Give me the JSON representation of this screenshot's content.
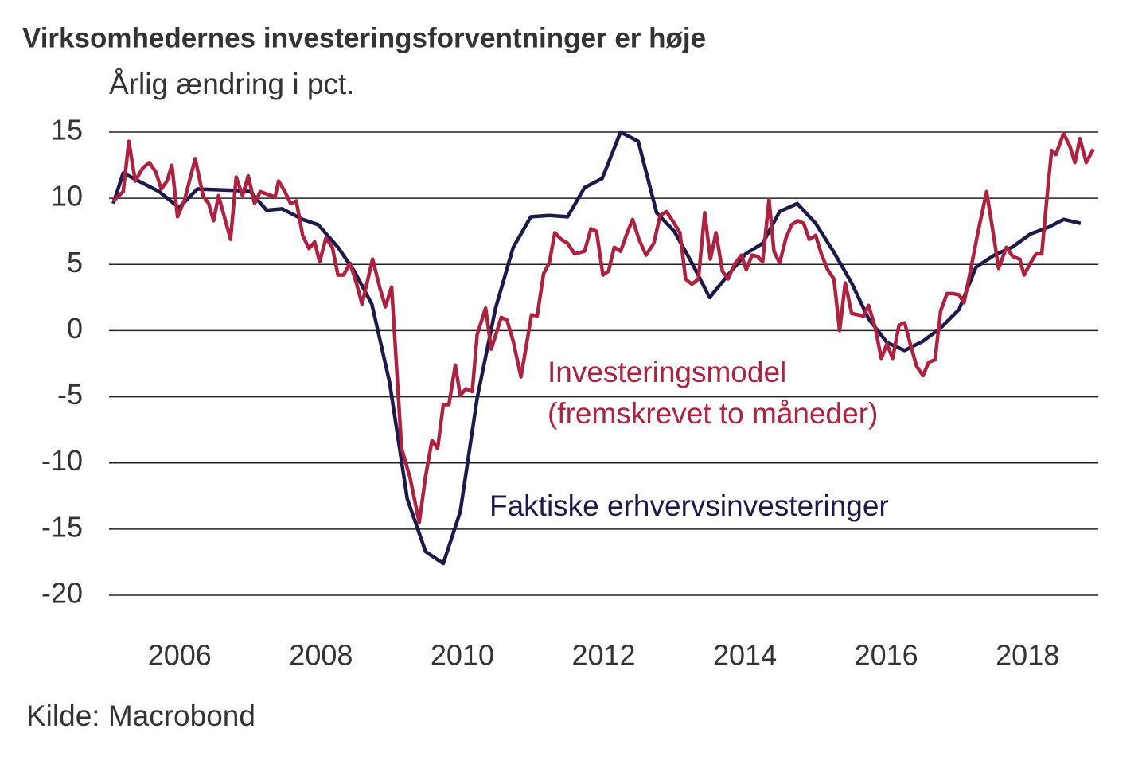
{
  "chart_data": {
    "type": "line",
    "title": "Virksomhedernes investeringsforventninger er høje",
    "subtitle": "Årlig ændring i pct.",
    "source": "Kilde: Macrobond",
    "annotations": [
      "Investeringsmodel",
      "(fremskrevet to måneder)",
      "Faktiske erhvervsinvesteringer"
    ],
    "xlim": [
      2005,
      2019
    ],
    "xticks": [
      2006,
      2008,
      2010,
      2012,
      2014,
      2016,
      2018
    ],
    "ylim": [
      -20,
      15
    ],
    "yticks": [
      -20,
      -15,
      -10,
      -5,
      0,
      5,
      10,
      15
    ],
    "grid": true,
    "series": [
      {
        "color": "#1c1a4a",
        "x": [
          2005.06,
          2005.2,
          2005.71,
          2005.99,
          2006.25,
          2006.78,
          2007.0,
          2007.23,
          2007.45,
          2007.74,
          2007.96,
          2008.24,
          2008.47,
          2008.72,
          2008.97,
          2009.22,
          2009.48,
          2009.73,
          2009.97,
          2010.21,
          2010.47,
          2010.72,
          2010.97,
          2011.23,
          2011.49,
          2011.73,
          2011.98,
          2012.24,
          2012.49,
          2012.75,
          2013.0,
          2013.25,
          2013.5,
          2013.76,
          2014.01,
          2014.25,
          2014.49,
          2014.74,
          2015.0,
          2015.25,
          2015.51,
          2015.75,
          2016.01,
          2016.26,
          2016.52,
          2016.77,
          2017.03,
          2017.27,
          2017.53,
          2017.78,
          2018.04,
          2018.29,
          2018.51,
          2018.75
        ],
        "values": [
          9.6,
          11.9,
          10.5,
          9.3,
          10.7,
          10.6,
          10.5,
          9.1,
          9.2,
          8.4,
          8.0,
          6.3,
          4.5,
          2.0,
          -3.9,
          -12.7,
          -16.7,
          -17.6,
          -13.7,
          -5.1,
          1.7,
          6.3,
          8.6,
          8.7,
          8.6,
          10.8,
          11.5,
          15.0,
          14.3,
          8.9,
          7.5,
          5.1,
          2.5,
          4.2,
          5.8,
          6.6,
          9.0,
          9.6,
          8.1,
          6.0,
          3.6,
          0.9,
          -0.9,
          -1.5,
          -0.8,
          0.2,
          1.6,
          4.8,
          5.7,
          6.3,
          7.3,
          7.8,
          8.4,
          8.1
        ]
      },
      {
        "color": "#b0203f",
        "x": [
          2005.06,
          2005.2,
          2005.28,
          2005.37,
          2005.48,
          2005.57,
          2005.66,
          2005.74,
          2005.82,
          2005.89,
          2005.97,
          2006.07,
          2006.22,
          2006.33,
          2006.41,
          2006.48,
          2006.55,
          2006.72,
          2006.8,
          2006.89,
          2006.97,
          2007.06,
          2007.14,
          2007.35,
          2007.4,
          2007.49,
          2007.57,
          2007.65,
          2007.74,
          2007.83,
          2007.91,
          2007.98,
          2008.07,
          2008.16,
          2008.24,
          2008.32,
          2008.41,
          2008.5,
          2008.58,
          2008.73,
          2008.83,
          2008.91,
          2009.0,
          2009.14,
          2009.26,
          2009.39,
          2009.48,
          2009.57,
          2009.65,
          2009.73,
          2009.81,
          2009.9,
          2009.97,
          2010.05,
          2010.14,
          2010.21,
          2010.33,
          2010.41,
          2010.55,
          2010.63,
          2010.72,
          2010.83,
          2010.98,
          2011.06,
          2011.15,
          2011.23,
          2011.31,
          2011.4,
          2011.49,
          2011.59,
          2011.73,
          2011.82,
          2011.9,
          2011.99,
          2012.07,
          2012.15,
          2012.24,
          2012.32,
          2012.41,
          2012.5,
          2012.6,
          2012.71,
          2012.8,
          2012.89,
          2013.0,
          2013.08,
          2013.16,
          2013.25,
          2013.34,
          2013.43,
          2013.51,
          2013.59,
          2013.68,
          2013.76,
          2013.85,
          2013.95,
          2014.02,
          2014.1,
          2014.18,
          2014.25,
          2014.34,
          2014.41,
          2014.49,
          2014.58,
          2014.66,
          2014.75,
          2014.83,
          2014.91,
          2015.0,
          2015.08,
          2015.17,
          2015.26,
          2015.34,
          2015.42,
          2015.51,
          2015.6,
          2015.68,
          2015.75,
          2015.84,
          2015.93,
          2016.01,
          2016.09,
          2016.18,
          2016.26,
          2016.35,
          2016.43,
          2016.52,
          2016.6,
          2016.69,
          2016.77,
          2016.86,
          2016.94,
          2017.03,
          2017.1,
          2017.19,
          2017.3,
          2017.42,
          2017.51,
          2017.59,
          2017.7,
          2017.79,
          2017.89,
          2017.95,
          2018.04,
          2018.12,
          2018.2,
          2018.29,
          2018.34,
          2018.4,
          2018.51,
          2018.6,
          2018.67,
          2018.74,
          2018.83,
          2018.93
        ],
        "values": [
          9.8,
          10.5,
          14.3,
          11.3,
          12.3,
          12.7,
          12.0,
          10.7,
          11.3,
          12.5,
          8.6,
          9.9,
          13.0,
          10.2,
          9.6,
          8.3,
          10.2,
          6.9,
          11.6,
          10.2,
          11.7,
          9.6,
          10.5,
          10.1,
          11.3,
          10.5,
          9.6,
          9.8,
          7.2,
          6.2,
          6.7,
          5.2,
          7.0,
          6.3,
          4.2,
          4.2,
          5.1,
          3.6,
          2.0,
          5.4,
          3.3,
          1.8,
          3.3,
          -8.9,
          -11.1,
          -14.5,
          -11.0,
          -8.3,
          -8.9,
          -5.6,
          -5.6,
          -2.6,
          -4.9,
          -4.4,
          -4.6,
          -0.3,
          1.7,
          -1.4,
          1.0,
          0.8,
          -0.8,
          -3.5,
          1.2,
          1.1,
          4.3,
          5.1,
          7.4,
          6.9,
          6.6,
          5.8,
          6.0,
          7.7,
          7.5,
          4.2,
          4.5,
          6.3,
          6.0,
          7.2,
          8.4,
          6.9,
          5.7,
          6.6,
          8.7,
          9.0,
          8.1,
          7.4,
          3.9,
          3.5,
          3.9,
          8.9,
          5.4,
          7.4,
          4.5,
          3.9,
          5.0,
          5.7,
          4.6,
          5.7,
          5.6,
          5.2,
          9.9,
          6.0,
          5.1,
          7.0,
          8.0,
          8.3,
          8.1,
          6.9,
          7.2,
          5.8,
          4.6,
          3.9,
          0.0,
          3.6,
          1.3,
          1.2,
          1.1,
          1.9,
          0.3,
          -2.1,
          -1.0,
          -2.1,
          0.4,
          0.6,
          -1.2,
          -2.7,
          -3.4,
          -2.4,
          -2.2,
          1.5,
          2.8,
          2.8,
          2.7,
          2.1,
          4.5,
          7.5,
          10.5,
          7.5,
          4.7,
          6.3,
          5.6,
          5.4,
          4.2,
          5.1,
          5.8,
          5.8,
          11.0,
          13.6,
          13.3,
          14.9,
          13.9,
          12.7,
          14.5,
          12.7,
          13.7
        ]
      }
    ]
  }
}
